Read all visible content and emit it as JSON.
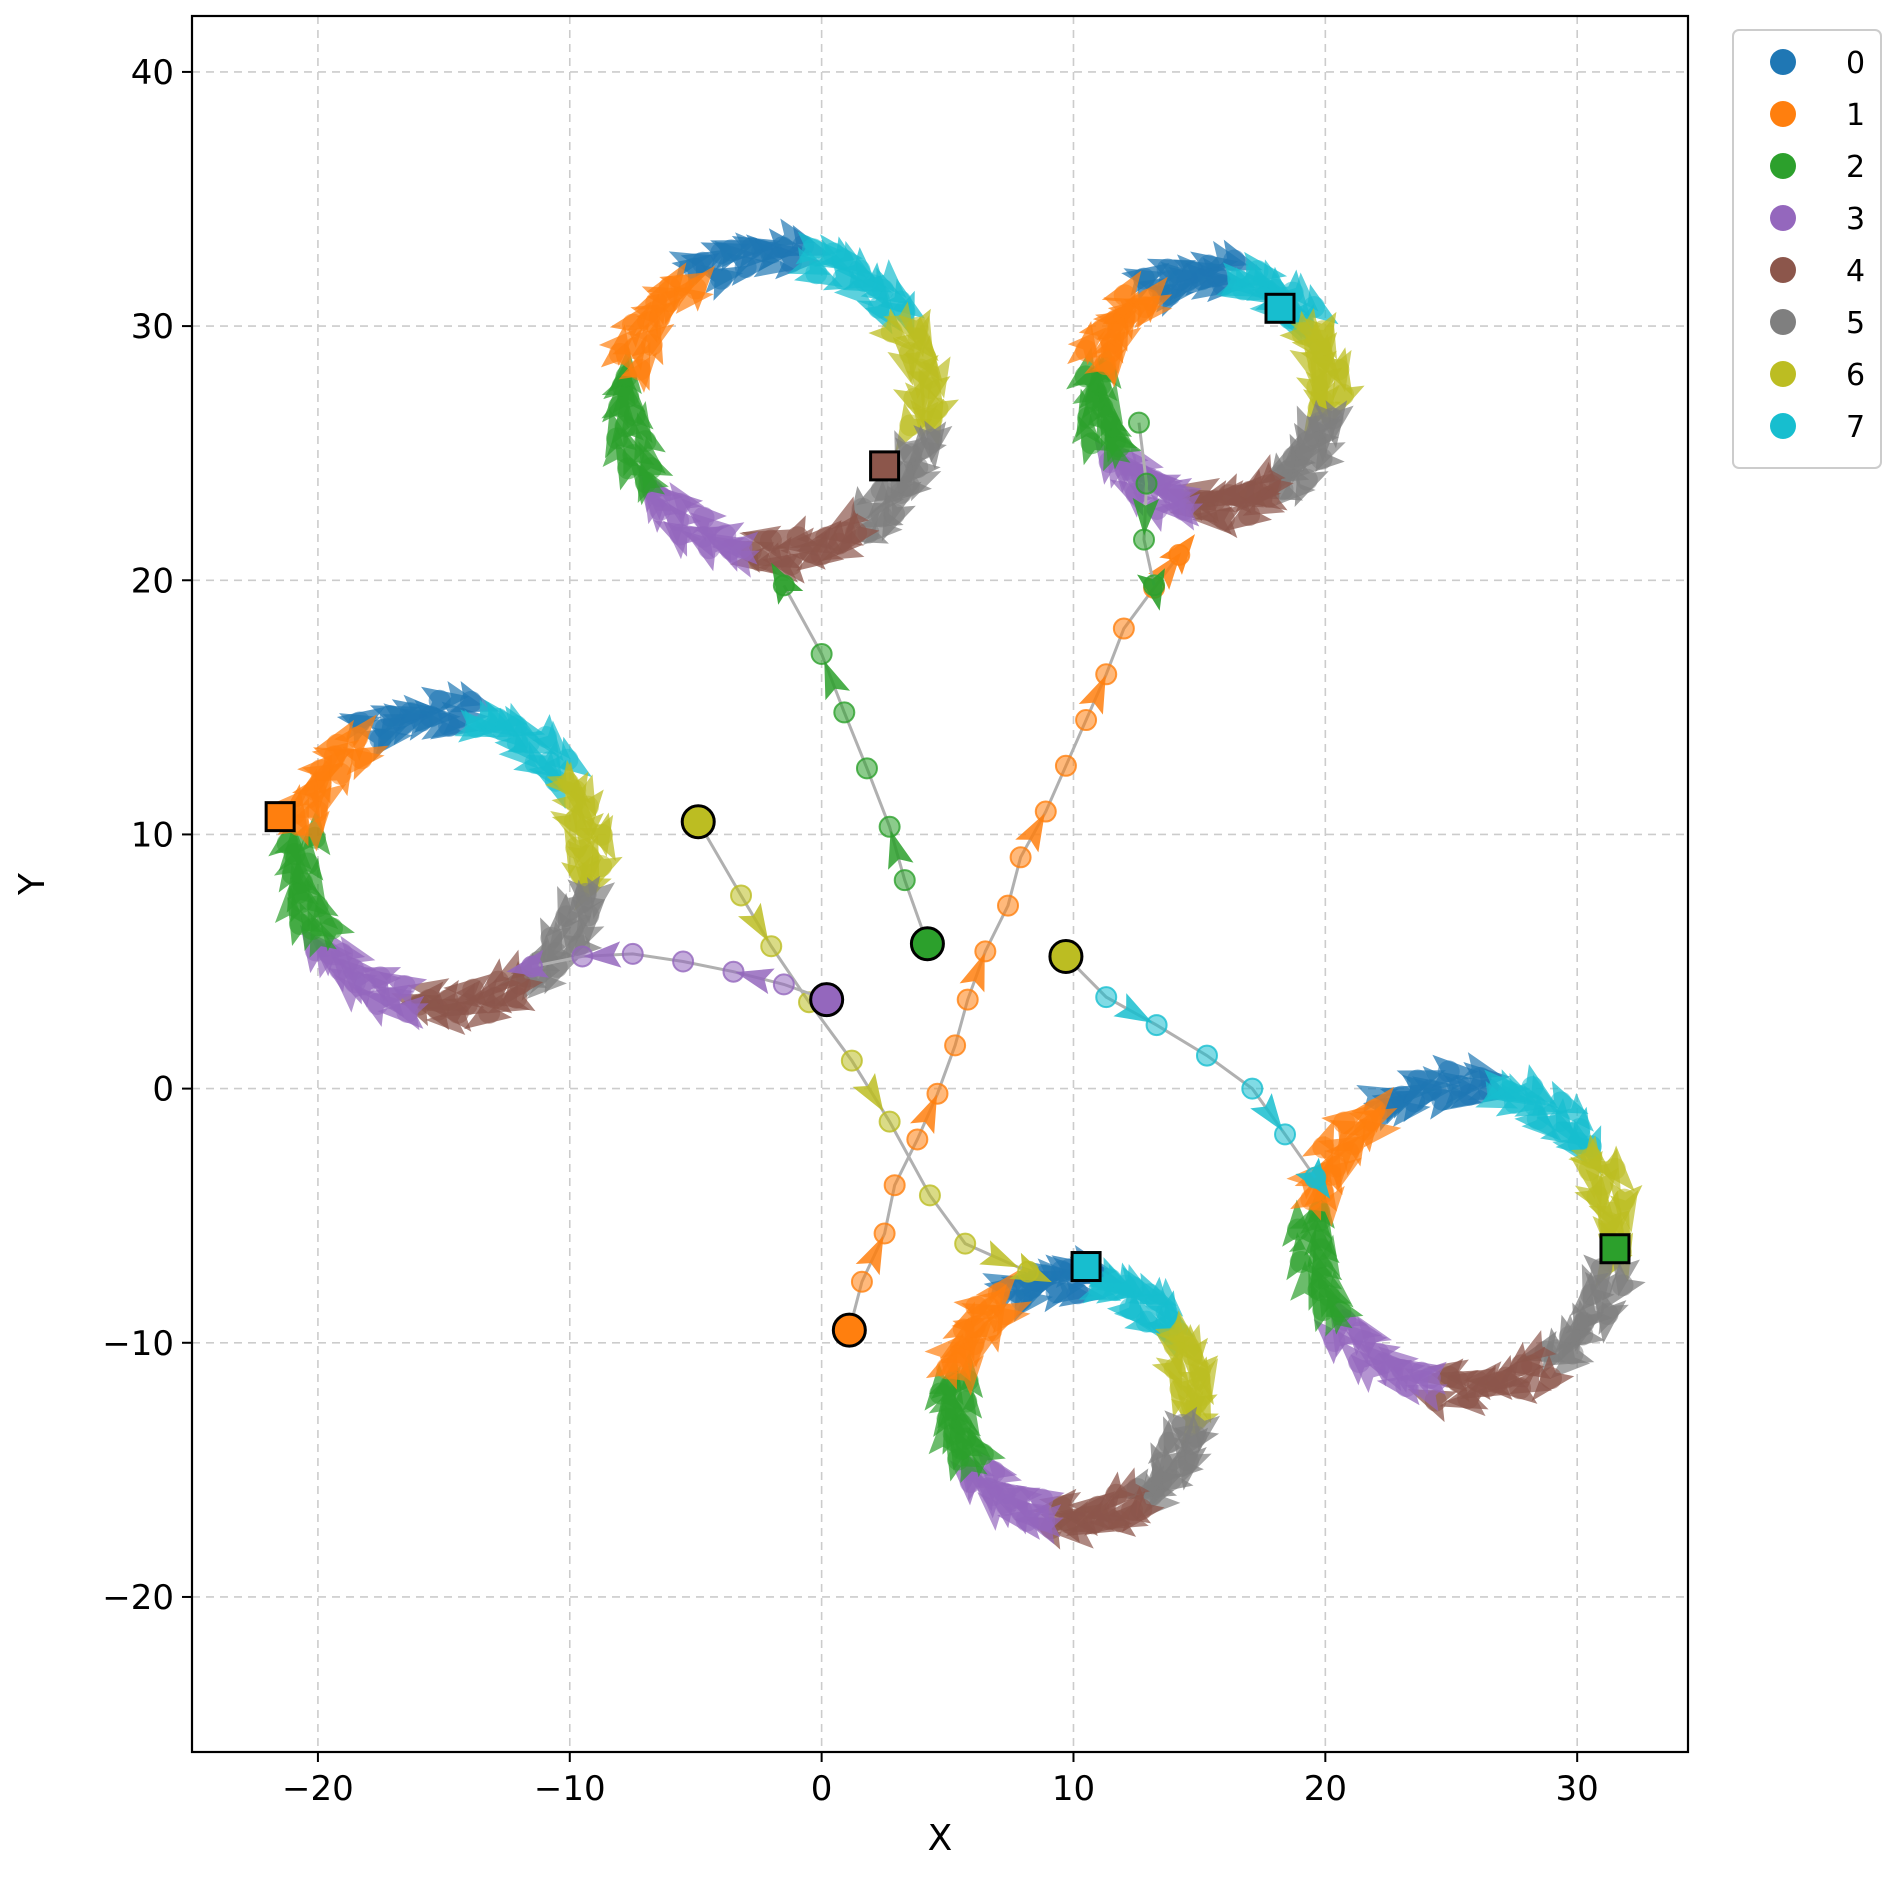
{
  "chart_data": {
    "type": "scatter",
    "title": "",
    "xlabel": "X",
    "ylabel": "Y",
    "xlim": [
      -25,
      34.4
    ],
    "ylim": [
      -26.1,
      42.2
    ],
    "xticks": [
      -20,
      -10,
      0,
      10,
      20,
      30
    ],
    "yticks": [
      -20,
      -10,
      0,
      10,
      20,
      30,
      40
    ],
    "xtick_labels": [
      "−20",
      "−10",
      "0",
      "10",
      "20",
      "30"
    ],
    "ytick_labels": [
      "−20",
      "−10",
      "0",
      "10",
      "20",
      "30",
      "40"
    ],
    "grid": true,
    "legend_position": "outside-top-right",
    "palette": [
      "#1f77b4",
      "#ff7f0e",
      "#2ca02c",
      "#9467bd",
      "#8c564b",
      "#7f7f7f",
      "#bcbd22",
      "#17becf"
    ],
    "series": [
      {
        "name": "0"
      },
      {
        "name": "1"
      },
      {
        "name": "2"
      },
      {
        "name": "3"
      },
      {
        "name": "4"
      },
      {
        "name": "5"
      },
      {
        "name": "6"
      },
      {
        "name": "7"
      }
    ],
    "circles": [
      {
        "cx": -1.8,
        "cy": 27.0,
        "r": 6.0
      },
      {
        "cx": 15.5,
        "cy": 27.5,
        "r": 4.6
      },
      {
        "cx": -15.0,
        "cy": 9.0,
        "r": 5.8
      },
      {
        "cx": 10.0,
        "cy": -12.2,
        "r": 4.8
      },
      {
        "cx": 25.5,
        "cy": -5.8,
        "r": 6.0
      }
    ],
    "trajectories": [
      {
        "color_index": 2,
        "points": [
          [
            4.2,
            5.7
          ],
          [
            3.3,
            8.2
          ],
          [
            2.7,
            10.3
          ],
          [
            1.8,
            12.6
          ],
          [
            0.9,
            14.8
          ],
          [
            0.0,
            17.1
          ],
          [
            -1.5,
            19.8
          ]
        ],
        "start": [
          4.2,
          5.7
        ],
        "start_color_index": 2
      },
      {
        "color_index": 1,
        "points": [
          [
            1.1,
            -9.5
          ],
          [
            1.6,
            -7.6
          ],
          [
            2.5,
            -5.7
          ],
          [
            2.9,
            -3.8
          ],
          [
            3.8,
            -2.0
          ],
          [
            4.6,
            -0.2
          ],
          [
            5.3,
            1.7
          ],
          [
            5.8,
            3.5
          ],
          [
            6.5,
            5.4
          ],
          [
            7.4,
            7.2
          ],
          [
            7.9,
            9.1
          ],
          [
            8.9,
            10.9
          ],
          [
            9.7,
            12.7
          ],
          [
            10.5,
            14.5
          ],
          [
            11.3,
            16.3
          ],
          [
            12.0,
            18.1
          ],
          [
            13.2,
            19.7
          ],
          [
            14.2,
            21.0
          ]
        ],
        "start": [
          1.1,
          -9.5
        ],
        "start_color_index": 1
      },
      {
        "color_index": 6,
        "points": [
          [
            -4.9,
            10.5
          ],
          [
            -3.2,
            7.6
          ],
          [
            -2.0,
            5.6
          ],
          [
            -0.5,
            3.4
          ],
          [
            1.2,
            1.1
          ],
          [
            2.7,
            -1.3
          ],
          [
            4.3,
            -4.2
          ],
          [
            5.7,
            -6.1
          ],
          [
            8.2,
            -7.2
          ]
        ],
        "start": [
          -4.9,
          10.5
        ],
        "start_color_index": 6
      },
      {
        "color_index": 7,
        "points": [
          [
            9.7,
            5.2
          ],
          [
            11.3,
            3.6
          ],
          [
            13.3,
            2.5
          ],
          [
            15.3,
            1.3
          ],
          [
            17.1,
            0.0
          ],
          [
            18.4,
            -1.8
          ],
          [
            19.6,
            -3.5
          ]
        ],
        "start": [
          9.7,
          5.2
        ],
        "start_color_index": 6
      },
      {
        "color_index": 3,
        "points": [
          [
            0.2,
            3.5
          ],
          [
            -1.5,
            4.1
          ],
          [
            -3.5,
            4.6
          ],
          [
            -5.5,
            5.0
          ],
          [
            -7.5,
            5.3
          ],
          [
            -9.5,
            5.2
          ],
          [
            -11.5,
            4.8
          ]
        ],
        "start": [
          0.2,
          3.5
        ],
        "start_color_index": 3
      },
      {
        "color_index": 2,
        "points": [
          [
            12.6,
            26.2
          ],
          [
            12.9,
            23.8
          ],
          [
            12.8,
            21.6
          ],
          [
            13.2,
            19.8
          ]
        ],
        "start": null,
        "start_color_index": 2
      }
    ],
    "end_markers": [
      {
        "x": 2.5,
        "y": 24.5,
        "color_index": 4
      },
      {
        "x": 18.2,
        "y": 30.7,
        "color_index": 7
      },
      {
        "x": -21.5,
        "y": 10.7,
        "color_index": 1
      },
      {
        "x": 10.5,
        "y": -7.0,
        "color_index": 7
      },
      {
        "x": 31.5,
        "y": -6.3,
        "color_index": 2
      }
    ]
  }
}
